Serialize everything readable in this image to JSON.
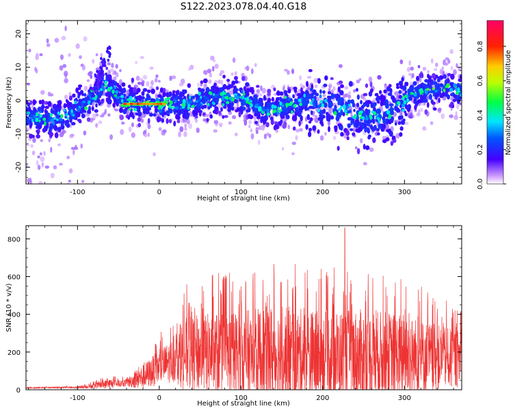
{
  "title": "S122.2023.078.04.40.G18",
  "chart_data": [
    {
      "type": "heatmap",
      "xlabel": "Height of straight line (km)",
      "ylabel": "Frequency (Hz)",
      "xlim": [
        -163,
        370
      ],
      "ylim": [
        -25,
        24
      ],
      "xticks": [
        -100,
        0,
        100,
        200,
        300
      ],
      "yticks": [
        -20,
        -10,
        0,
        10,
        20
      ],
      "colorbar": {
        "label": "Normalized spectral amplitude",
        "range": [
          0.0,
          0.95
        ],
        "ticks": [
          0.0,
          0.2,
          0.4,
          0.6,
          0.8
        ],
        "colormap": "gist_rainbow_r"
      },
      "ridge": {
        "x": [
          -160,
          -130,
          -110,
          -95,
          -80,
          -65,
          -55,
          -45,
          -30,
          -10,
          0,
          15,
          30,
          50,
          70,
          90,
          110,
          130,
          150,
          170,
          190,
          210,
          230,
          250,
          270,
          290,
          310,
          330,
          350,
          370
        ],
        "y": [
          -5,
          -6,
          -4,
          -1,
          1,
          5,
          2,
          0,
          -1,
          -1,
          -1,
          -1.5,
          -1,
          0,
          1,
          1,
          0,
          -3,
          -2,
          -1,
          0,
          -2,
          -3,
          -5,
          -5,
          -2,
          2,
          3,
          4,
          3
        ]
      },
      "hot_segment": {
        "x": [
          -45,
          10
        ],
        "y": -1,
        "value": 0.9
      }
    },
    {
      "type": "line",
      "xlabel": "Height of straight line (km)",
      "ylabel": "SNR (10 * v/v)",
      "xlim": [
        -163,
        370
      ],
      "ylim": [
        0,
        870
      ],
      "xticks": [
        -100,
        0,
        100,
        200,
        300
      ],
      "yticks": [
        0,
        200,
        400,
        600,
        800
      ],
      "color": "#ee3333",
      "envelope": {
        "x": [
          -163,
          -100,
          -80,
          -60,
          -50,
          -40,
          -20,
          0,
          20,
          30,
          50,
          70,
          100,
          120,
          130,
          150,
          200,
          250,
          300,
          350,
          370
        ],
        "base": [
          10,
          12,
          18,
          30,
          30,
          35,
          60,
          110,
          150,
          170,
          170,
          160,
          150,
          140,
          160,
          150,
          150,
          150,
          150,
          150,
          150
        ],
        "amp": [
          5,
          8,
          25,
          50,
          30,
          40,
          120,
          170,
          220,
          350,
          380,
          420,
          450,
          480,
          500,
          480,
          450,
          460,
          420,
          300,
          280
        ]
      },
      "peak": {
        "x": 227,
        "y": 860
      }
    }
  ]
}
